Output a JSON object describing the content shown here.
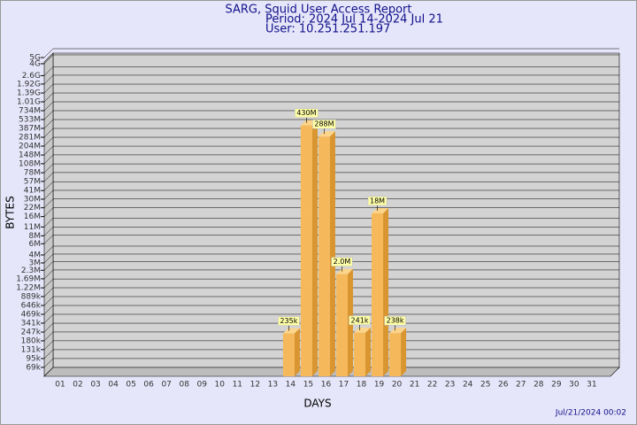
{
  "chart_data": {
    "type": "bar",
    "title": "SARG, Squid User Access Report",
    "subtitle": "Period: 2024 Jul 14-2024 Jul 21",
    "user": "User: 10.251.251.197",
    "y_label": "BYTES",
    "x_label": "DAYS",
    "timestamp": "Jul/21/2024 00:02",
    "categories": [
      "01",
      "02",
      "03",
      "04",
      "05",
      "06",
      "07",
      "08",
      "09",
      "10",
      "11",
      "12",
      "13",
      "14",
      "15",
      "16",
      "17",
      "18",
      "19",
      "20",
      "21",
      "22",
      "23",
      "24",
      "25",
      "26",
      "27",
      "28",
      "29",
      "30",
      "31"
    ],
    "values": [
      null,
      null,
      null,
      null,
      null,
      null,
      null,
      null,
      null,
      null,
      null,
      null,
      null,
      235000,
      430000000,
      288000000,
      2000000,
      241000,
      18000000,
      238000,
      null,
      null,
      null,
      null,
      null,
      null,
      null,
      null,
      null,
      null,
      null
    ],
    "value_labels": [
      null,
      null,
      null,
      null,
      null,
      null,
      null,
      null,
      null,
      null,
      null,
      null,
      null,
      "235k",
      "430M",
      "288M",
      "2.0M",
      "241k",
      "18M",
      "238k",
      null,
      null,
      null,
      null,
      null,
      null,
      null,
      null,
      null,
      null,
      null
    ],
    "color": "#f5b95c",
    "log_scale": true,
    "grid": true,
    "ylim": [
      50000,
      5000000000
    ],
    "yticks": [
      {
        "value": 69000,
        "label": "69k"
      },
      {
        "value": 95000,
        "label": "95k"
      },
      {
        "value": 131000,
        "label": "131k"
      },
      {
        "value": 180000,
        "label": "180k"
      },
      {
        "value": 247000,
        "label": "247k"
      },
      {
        "value": 341000,
        "label": "341k"
      },
      {
        "value": 469000,
        "label": "469k"
      },
      {
        "value": 646000,
        "label": "646k"
      },
      {
        "value": 889000,
        "label": "889k"
      },
      {
        "value": 1220000,
        "label": "1.22M"
      },
      {
        "value": 1690000,
        "label": "1.69M"
      },
      {
        "value": 2300000,
        "label": "2.3M"
      },
      {
        "value": 3000000,
        "label": "3M"
      },
      {
        "value": 4000000,
        "label": "4M"
      },
      {
        "value": 6000000,
        "label": "6M"
      },
      {
        "value": 8000000,
        "label": "8M"
      },
      {
        "value": 11000000,
        "label": "11M"
      },
      {
        "value": 16000000,
        "label": "16M"
      },
      {
        "value": 22000000,
        "label": "22M"
      },
      {
        "value": 30000000,
        "label": "30M"
      },
      {
        "value": 41000000,
        "label": "41M"
      },
      {
        "value": 57000000,
        "label": "57M"
      },
      {
        "value": 78000000,
        "label": "78M"
      },
      {
        "value": 108000000,
        "label": "108M"
      },
      {
        "value": 148000000,
        "label": "148M"
      },
      {
        "value": 204000000,
        "label": "204M"
      },
      {
        "value": 281000000,
        "label": "281M"
      },
      {
        "value": 387000000,
        "label": "387M"
      },
      {
        "value": 533000000,
        "label": "533M"
      },
      {
        "value": 734000000,
        "label": "734M"
      },
      {
        "value": 1010000000,
        "label": "1.01G"
      },
      {
        "value": 1390000000,
        "label": "1.39G"
      },
      {
        "value": 1920000000,
        "label": "1.92G"
      },
      {
        "value": 2600000000,
        "label": "2.6G"
      },
      {
        "value": 4000000000,
        "label": "4G"
      },
      {
        "value": 5000000000,
        "label": "5G"
      }
    ]
  }
}
